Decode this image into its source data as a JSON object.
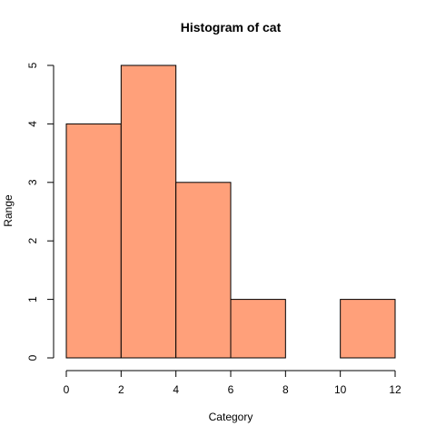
{
  "chart_data": {
    "type": "bar",
    "title": "Histogram of cat",
    "xlabel": "Category",
    "ylabel": "Range",
    "bins": [
      {
        "from": 0,
        "to": 2,
        "count": 4
      },
      {
        "from": 2,
        "to": 4,
        "count": 5
      },
      {
        "from": 4,
        "to": 6,
        "count": 3
      },
      {
        "from": 6,
        "to": 8,
        "count": 1
      },
      {
        "from": 8,
        "to": 10,
        "count": 0
      },
      {
        "from": 10,
        "to": 12,
        "count": 1
      }
    ],
    "xlim": [
      0,
      12
    ],
    "ylim": [
      0,
      5
    ],
    "x_ticks": [
      "0",
      "2",
      "4",
      "6",
      "8",
      "10",
      "12"
    ],
    "y_ticks": [
      "0",
      "1",
      "2",
      "3",
      "4",
      "5"
    ],
    "grid": false,
    "bar_color": "#FFA07A",
    "border_color": "#000000"
  }
}
